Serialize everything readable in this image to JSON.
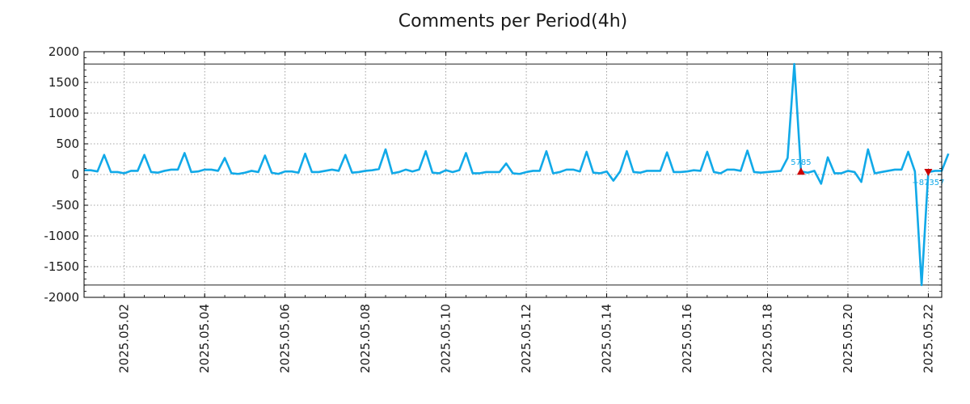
{
  "chart_data": {
    "type": "line",
    "title": "Comments per Period(4h)",
    "xlabel": "",
    "ylabel": "",
    "x_start": "2025-05-01 00:00",
    "interval_hours": 4,
    "xlim": [
      "2025-05-01 00:00",
      "2025-05-22 08:00"
    ],
    "ylim": [
      -2000,
      2000
    ],
    "yticks": [
      2000,
      1500,
      1000,
      500,
      0,
      -500,
      -1000,
      -1500,
      -2000
    ],
    "ytick_labels": [
      "2000",
      "1500",
      "1000",
      "500",
      "0",
      "-500",
      "-1000",
      "-1500",
      "-2000"
    ],
    "xticks": [
      "2025-05-02",
      "2025-05-04",
      "2025-05-06",
      "2025-05-08",
      "2025-05-10",
      "2025-05-12",
      "2025-05-14",
      "2025-05-16",
      "2025-05-18",
      "2025-05-20",
      "2025-05-22"
    ],
    "xtick_labels": [
      "2025.05.02",
      "2025.05.04",
      "2025.05.06",
      "2025.05.08",
      "2025.05.10",
      "2025.05.12",
      "2025.05.14",
      "2025.05.16",
      "2025.05.18",
      "2025.05.20",
      "2025.05.22"
    ],
    "grid": true,
    "clip_lines": [
      1800,
      -1800
    ],
    "series": [
      {
        "color": "#11a9e8",
        "values": [
          70,
          70,
          50,
          320,
          40,
          40,
          20,
          60,
          60,
          320,
          40,
          30,
          60,
          80,
          80,
          350,
          40,
          50,
          80,
          80,
          60,
          270,
          20,
          10,
          30,
          60,
          40,
          310,
          30,
          10,
          50,
          50,
          30,
          340,
          40,
          40,
          60,
          80,
          60,
          320,
          30,
          40,
          60,
          70,
          90,
          410,
          20,
          40,
          80,
          50,
          80,
          380,
          30,
          20,
          70,
          40,
          70,
          350,
          20,
          20,
          40,
          40,
          40,
          180,
          20,
          10,
          40,
          60,
          60,
          380,
          20,
          40,
          80,
          80,
          50,
          370,
          30,
          20,
          50,
          -100,
          50,
          380,
          40,
          30,
          60,
          60,
          60,
          360,
          40,
          40,
          50,
          70,
          60,
          370,
          40,
          20,
          80,
          80,
          60,
          390,
          40,
          30,
          40,
          50,
          60,
          270,
          1800,
          50,
          30,
          60,
          -150,
          280,
          20,
          20,
          60,
          40,
          -120,
          410,
          20,
          40,
          60,
          80,
          80,
          370,
          50,
          -1800,
          40,
          60,
          60,
          340
        ]
      }
    ],
    "annotations": [
      {
        "index": 107,
        "label": "5785",
        "marker": "up-triangle",
        "color": "#cc0000",
        "text_color": "#11a9e8"
      },
      {
        "index": 126,
        "label": "−87357",
        "marker": "down-triangle",
        "color": "#cc0000",
        "text_color": "#11a9e8"
      }
    ]
  }
}
